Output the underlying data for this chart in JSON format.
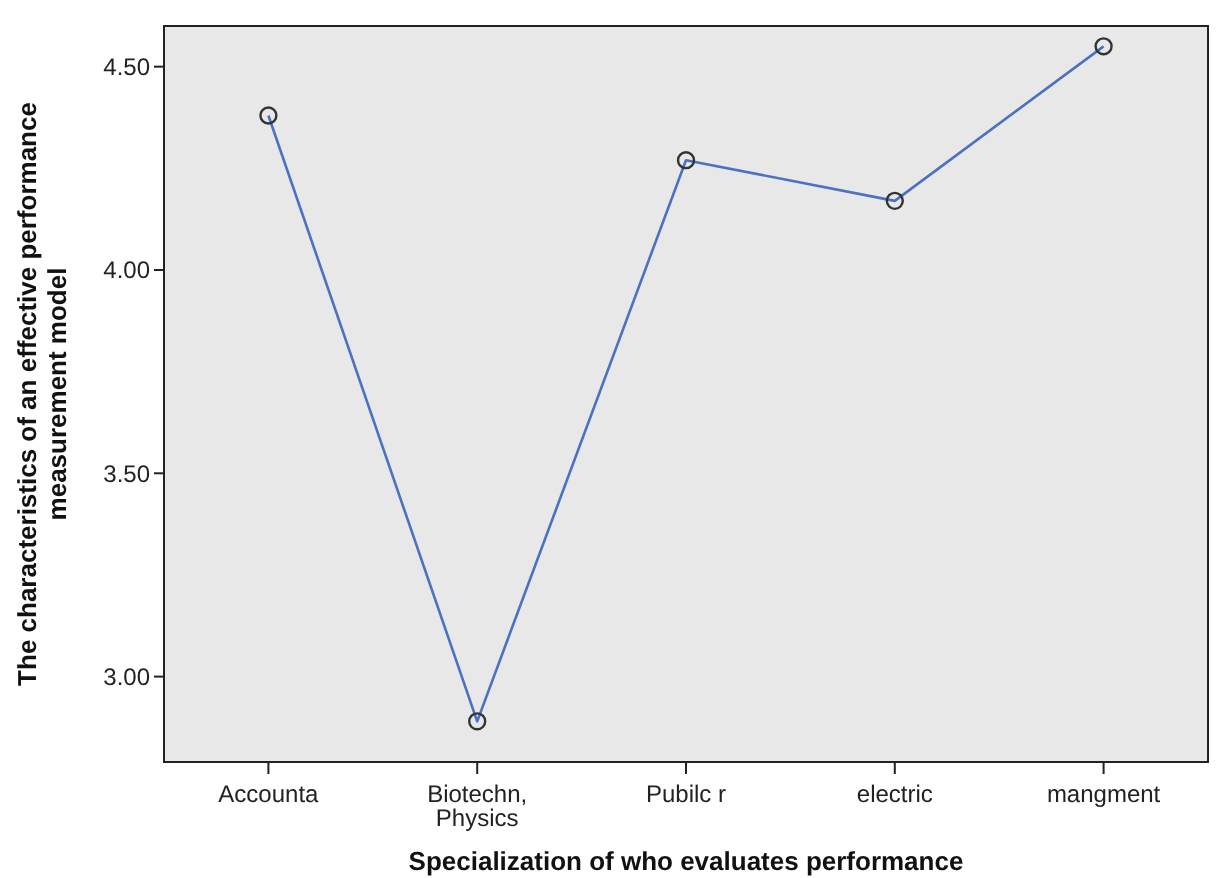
{
  "chart_data": {
    "type": "line",
    "xlabel": "Specialization of who evaluates performance",
    "ylabel": "The characteristics of an effective performance\nmeasurement model",
    "categories": [
      "Accounta",
      "Biotechn,\nPhysics",
      "Pubilc r",
      "electric",
      "mangment"
    ],
    "series": [
      {
        "color": "#4a72c0",
        "values": [
          4.38,
          2.89,
          4.27,
          4.17,
          4.55
        ]
      }
    ],
    "ylim": [
      2.79,
      4.6
    ],
    "yticks": [
      {
        "value": 3,
        "label": "3.00"
      },
      {
        "value": 3.5,
        "label": "3.50"
      },
      {
        "value": 4,
        "label": "4.00"
      },
      {
        "value": 4.5,
        "label": "4.50"
      }
    ],
    "marker": "circle",
    "grid": false
  }
}
